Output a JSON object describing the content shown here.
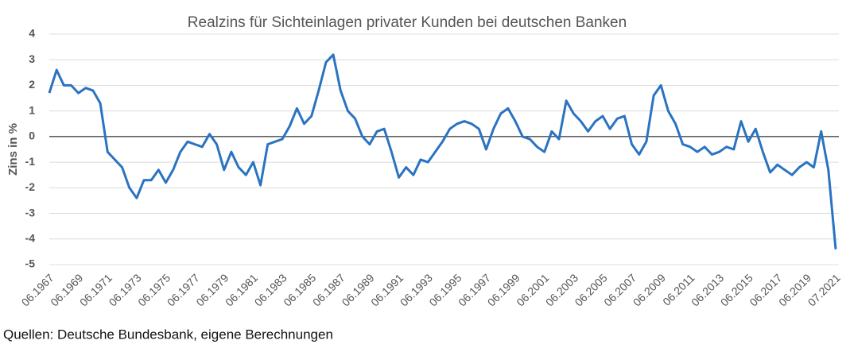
{
  "chart_data": {
    "type": "line",
    "title": "Realzins für Sichteinlagen privater Kunden bei deutschen Banken",
    "y_label": "Zins in %",
    "source": "Quellen: Deutsche Bundesbank, eigene Berechnungen",
    "categories": [
      "06.1967",
      null,
      null,
      null,
      "06.1969",
      null,
      null,
      null,
      "06.1971",
      null,
      null,
      null,
      "06.1973",
      null,
      null,
      null,
      "06.1975",
      null,
      null,
      null,
      "06.1977",
      null,
      null,
      null,
      "06.1979",
      null,
      null,
      null,
      "06.1981",
      null,
      null,
      null,
      "06.1983",
      null,
      null,
      null,
      "06.1985",
      null,
      null,
      null,
      "06.1987",
      null,
      null,
      null,
      "06.1989",
      null,
      null,
      null,
      "06.1991",
      null,
      null,
      null,
      "06.1993",
      null,
      null,
      null,
      "06.1995",
      null,
      null,
      null,
      "06.1997",
      null,
      null,
      null,
      "06.1999",
      null,
      null,
      null,
      "06.2001",
      null,
      null,
      null,
      "06.2003",
      null,
      null,
      null,
      "06.2005",
      null,
      null,
      null,
      "06.2007",
      null,
      null,
      null,
      "06.2009",
      null,
      null,
      null,
      "06.2011",
      null,
      null,
      null,
      "06.2013",
      null,
      null,
      null,
      "06.2015",
      null,
      null,
      null,
      "06.2017",
      null,
      null,
      null,
      "06.2019",
      null,
      null,
      null,
      "07.2021"
    ],
    "series": [
      {
        "name": "Realzins",
        "color": "#2a73c1",
        "values": [
          1.7,
          2.6,
          2.0,
          2.0,
          1.7,
          1.9,
          1.8,
          1.3,
          -0.6,
          -0.9,
          -1.2,
          -2.0,
          -2.4,
          -1.7,
          -1.7,
          -1.3,
          -1.8,
          -1.3,
          -0.6,
          -0.2,
          -0.3,
          -0.4,
          0.1,
          -0.3,
          -1.3,
          -0.6,
          -1.2,
          -1.5,
          -1.0,
          -1.9,
          -0.3,
          -0.2,
          -0.1,
          0.4,
          1.1,
          0.5,
          0.8,
          1.8,
          2.9,
          3.2,
          1.8,
          1.0,
          0.7,
          0.0,
          -0.3,
          0.2,
          0.3,
          -0.6,
          -1.6,
          -1.2,
          -1.5,
          -0.9,
          -1.0,
          -0.6,
          -0.2,
          0.3,
          0.5,
          0.6,
          0.5,
          0.3,
          -0.5,
          0.3,
          0.9,
          1.1,
          0.6,
          0.0,
          -0.1,
          -0.4,
          -0.6,
          0.2,
          -0.1,
          1.4,
          0.9,
          0.6,
          0.2,
          0.6,
          0.8,
          0.3,
          0.7,
          0.8,
          -0.3,
          -0.7,
          -0.2,
          1.6,
          2.0,
          1.0,
          0.5,
          -0.3,
          -0.4,
          -0.6,
          -0.4,
          -0.7,
          -0.6,
          -0.4,
          -0.5,
          0.6,
          -0.2,
          0.3,
          -0.6,
          -1.4,
          -1.1,
          -1.3,
          -1.5,
          -1.2,
          -1.0,
          -1.2,
          0.2,
          -1.3,
          -4.4
        ]
      }
    ],
    "ylim": [
      -5,
      4
    ],
    "yticks": [
      -5,
      -4,
      -3,
      -2,
      -1,
      0,
      1,
      2,
      3,
      4
    ],
    "grid": true
  }
}
